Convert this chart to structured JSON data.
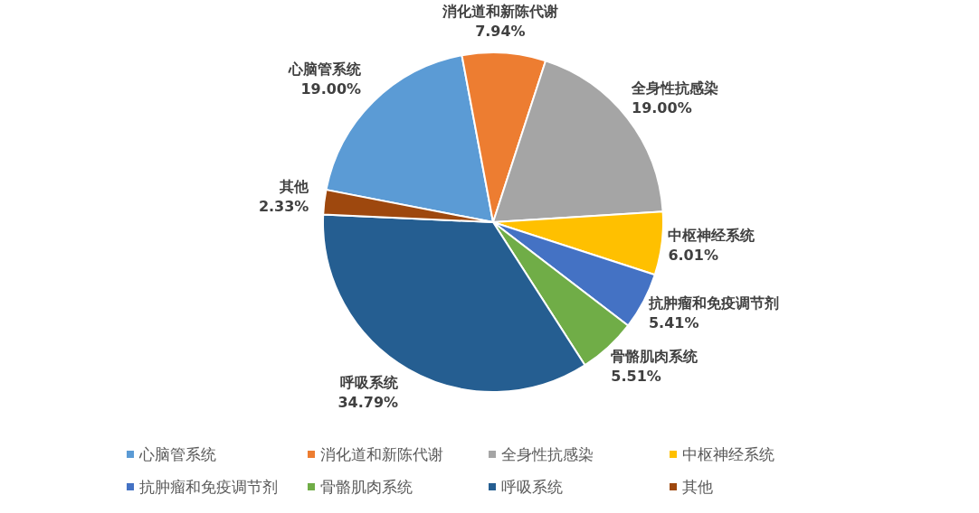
{
  "chart_data": {
    "type": "pie",
    "categories": [
      "心脑管系统",
      "消化道和新陈代谢",
      "全身性抗感染",
      "中枢神经系统",
      "抗肿瘤和免疫调节剂",
      "骨骼肌肉系统",
      "呼吸系统",
      "其他"
    ],
    "values": [
      19.0,
      7.94,
      19.0,
      6.01,
      5.41,
      5.51,
      34.79,
      2.33
    ],
    "value_labels": [
      "19.00%",
      "7.94%",
      "19.00%",
      "6.01%",
      "5.41%",
      "5.51%",
      "34.79%",
      "2.33%"
    ],
    "colors": [
      "#5b9bd5",
      "#ed7d31",
      "#a5a5a5",
      "#ffc000",
      "#4472c4",
      "#70ad47",
      "#255e91",
      "#9e480e"
    ],
    "legend": "bottom"
  }
}
